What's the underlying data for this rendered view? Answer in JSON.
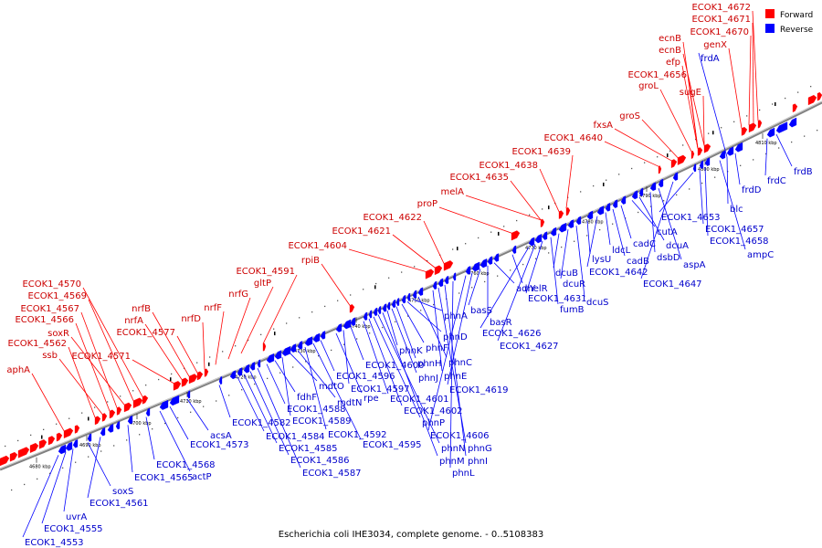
{
  "caption": "Escherichia coli IHE3034, complete genome. - 0..5108383",
  "legend": [
    {
      "label": "Forward",
      "color": "#ff0000"
    },
    {
      "label": "Reverse",
      "color": "#0000ff"
    }
  ],
  "colors": {
    "forward": "#ff0000",
    "reverse": "#0000ff",
    "label_forward": "#cc0000",
    "label_reverse": "#0000cc",
    "backbone": "#808080"
  },
  "ticks": [
    "4680 kbp",
    "4690 kbp",
    "4700 kbp",
    "4710 kbp",
    "4720 kbp",
    "4730 kbp",
    "4740 kbp",
    "4750 kbp",
    "4760 kbp",
    "4770 kbp",
    "4780 kbp",
    "4790 kbp",
    "4800 kbp",
    "4810 kbp"
  ],
  "forward_labels": [
    "aphA",
    "ECOK1_4562",
    "ssb",
    "ECOK1_4566",
    "ECOK1_4567",
    "soxR",
    "ECOK1_4569",
    "ECOK1_4570",
    "ECOK1_4571",
    "nrfA",
    "nrfB",
    "ECOK1_4577",
    "nrfD",
    "nrfF",
    "nrfG",
    "gltP",
    "ECOK1_4591",
    "rpiB",
    "ECOK1_4604",
    "ECOK1_4621",
    "ECOK1_4622",
    "proP",
    "melA",
    "ECOK1_4635",
    "ECOK1_4638",
    "ECOK1_4639",
    "ECOK1_4640",
    "fxsA",
    "groS",
    "groL",
    "ECOK1_4656",
    "sugE",
    "efp",
    "ecnB",
    "ecnB",
    "genX",
    "ECOK1_4670",
    "ECOK1_4671",
    "ECOK1_4672"
  ],
  "reverse_labels": [
    "ECOK1_4553",
    "ECOK1_4555",
    "uvrA",
    "soxS",
    "ECOK1_4561",
    "ECOK1_4565",
    "ECOK1_4568",
    "actP",
    "acsA",
    "ECOK1_4573",
    "ECOK1_4582",
    "ECOK1_4584",
    "ECOK1_4585",
    "ECOK1_4586",
    "ECOK1_4587",
    "ECOK1_4588",
    "fdhF",
    "ECOK1_4589",
    "mdtO",
    "mdtN",
    "ECOK1_4592",
    "ECOK1_4595",
    "ECOK1_4596",
    "rpe",
    "ECOK1_4597",
    "ECOK1_4600",
    "ECOK1_4601",
    "ECOK1_4602",
    "phnP",
    "phnN",
    "phnM",
    "phnK",
    "phnJ",
    "phnH",
    "phnF",
    "phnD",
    "phnA",
    "phnC",
    "phnE",
    "phnG",
    "phnI",
    "phnL",
    "ECOK1_4606",
    "ECOK1_4619",
    "basS",
    "basR",
    "adiY",
    "melR",
    "ECOK1_4626",
    "ECOK1_4627",
    "ECOK1_4631",
    "fumB",
    "dcuB",
    "dcuR",
    "dcuS",
    "lysU",
    "ECOK1_4642",
    "ldcL",
    "cadB",
    "cadC",
    "cutA",
    "dcuA",
    "dsbD",
    "aspA",
    "ECOK1_4647",
    "ECOK1_4653",
    "ECOK1_4657",
    "ECOK1_4658",
    "ampC",
    "blc",
    "frdD",
    "frdC",
    "frdB",
    "frdA"
  ]
}
